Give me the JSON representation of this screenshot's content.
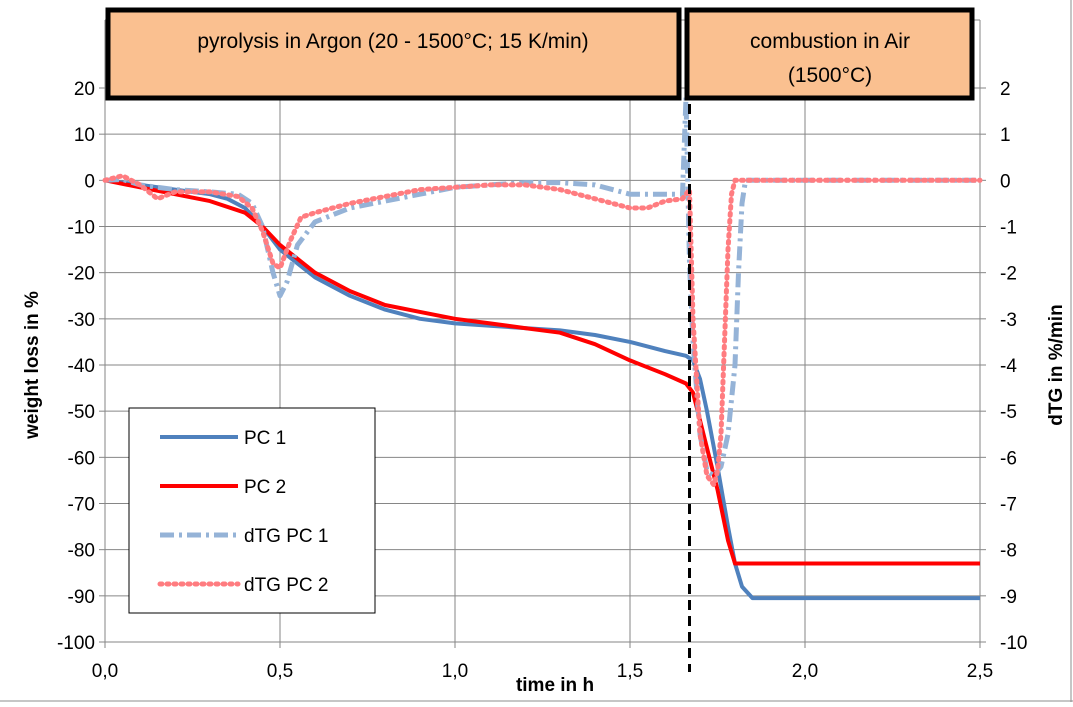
{
  "chart_data": {
    "type": "line",
    "title": "",
    "xlabel": "time in h",
    "ylabel": "weight loss in %",
    "y2label": "dTG in %/min",
    "xlim": [
      0,
      2.5
    ],
    "ylim": [
      -100,
      30
    ],
    "y2lim": [
      -10,
      3
    ],
    "x_ticks": [
      "0,0",
      "0,5",
      "1,0",
      "1,5",
      "2,0",
      "2,5"
    ],
    "y_ticks": [
      "20",
      "10",
      "0",
      "-10",
      "-20",
      "-30",
      "-40",
      "-50",
      "-60",
      "-70",
      "-80",
      "-90",
      "-100"
    ],
    "y2_ticks": [
      "2",
      "1",
      "0",
      "-1",
      "-2",
      "-3",
      "-4",
      "-5",
      "-6",
      "-7",
      "-8",
      "-9",
      "-10"
    ],
    "grid": true,
    "legend_position": "bottom-left",
    "phases": [
      {
        "label": "pyrolysis in Argon (20 - 1500°C; 15 K/min)",
        "x_range": [
          0,
          1.67
        ]
      },
      {
        "label": "combustion in Air (1500°C)",
        "x_range": [
          1.67,
          2.5
        ]
      }
    ],
    "phase_boundary_x": 1.67,
    "series": [
      {
        "name": "PC 1",
        "axis": "left",
        "color": "#4f81bd",
        "style": "solid",
        "x": [
          0,
          0.1,
          0.2,
          0.3,
          0.35,
          0.4,
          0.45,
          0.5,
          0.55,
          0.6,
          0.7,
          0.8,
          0.9,
          1.0,
          1.1,
          1.2,
          1.3,
          1.4,
          1.5,
          1.6,
          1.66,
          1.68,
          1.7,
          1.72,
          1.75,
          1.78,
          1.8,
          1.82,
          1.85,
          2.0,
          2.2,
          2.5
        ],
        "y": [
          0,
          -1,
          -2,
          -3,
          -4,
          -6,
          -10,
          -15,
          -18,
          -21,
          -25,
          -28,
          -30,
          -31,
          -31.5,
          -32,
          -32.5,
          -33.5,
          -35,
          -37,
          -38,
          -39,
          -43,
          -50,
          -62,
          -75,
          -83,
          -88,
          -90.5,
          -90.5,
          -90.5,
          -90.5
        ]
      },
      {
        "name": "PC 2",
        "axis": "left",
        "color": "#ff0000",
        "style": "solid",
        "x": [
          0,
          0.1,
          0.2,
          0.3,
          0.4,
          0.45,
          0.5,
          0.55,
          0.6,
          0.7,
          0.8,
          0.9,
          1.0,
          1.1,
          1.2,
          1.3,
          1.4,
          1.5,
          1.6,
          1.66,
          1.68,
          1.7,
          1.72,
          1.75,
          1.78,
          1.8,
          2.0,
          2.5
        ],
        "y": [
          0,
          -1.5,
          -3,
          -4.5,
          -7,
          -10,
          -14,
          -17,
          -20,
          -24,
          -27,
          -28.5,
          -30,
          -31,
          -32,
          -33,
          -35.5,
          -39,
          -42,
          -44,
          -46,
          -52,
          -58,
          -67,
          -78,
          -83,
          -83,
          -83
        ]
      },
      {
        "name": "dTG PC 1",
        "axis": "right",
        "color": "#95b3d7",
        "style": "dashdot",
        "x": [
          0,
          0.05,
          0.1,
          0.15,
          0.2,
          0.3,
          0.38,
          0.42,
          0.45,
          0.48,
          0.5,
          0.52,
          0.55,
          0.6,
          0.7,
          0.8,
          0.9,
          1.0,
          1.1,
          1.2,
          1.3,
          1.4,
          1.5,
          1.55,
          1.6,
          1.65,
          1.66,
          1.67,
          1.68,
          1.7,
          1.72,
          1.74,
          1.76,
          1.78,
          1.8,
          1.81,
          1.82,
          1.83,
          1.85,
          2.0,
          2.2,
          2.38,
          2.4,
          2.5
        ],
        "y": [
          0,
          0.02,
          -0.1,
          -0.15,
          -0.2,
          -0.25,
          -0.3,
          -0.5,
          -1.0,
          -2.0,
          -2.5,
          -2.2,
          -1.4,
          -0.9,
          -0.6,
          -0.45,
          -0.3,
          -0.15,
          -0.1,
          -0.05,
          -0.05,
          -0.1,
          -0.3,
          -0.3,
          -0.3,
          -0.3,
          1.8,
          -1.8,
          -3.5,
          -5.5,
          -6.3,
          -6.4,
          -6.2,
          -5.5,
          -4.0,
          -2.0,
          -0.5,
          0,
          0,
          0,
          0,
          0,
          0,
          0
        ]
      },
      {
        "name": "dTG PC 2",
        "axis": "right",
        "color": "#ff7c80",
        "style": "dotted",
        "x": [
          0,
          0.05,
          0.1,
          0.15,
          0.2,
          0.3,
          0.38,
          0.42,
          0.45,
          0.48,
          0.5,
          0.53,
          0.56,
          0.6,
          0.7,
          0.8,
          0.9,
          1.0,
          1.1,
          1.2,
          1.3,
          1.4,
          1.5,
          1.55,
          1.6,
          1.65,
          1.67,
          1.68,
          1.7,
          1.72,
          1.74,
          1.75,
          1.76,
          1.77,
          1.78,
          1.79,
          1.8,
          2.0,
          2.2,
          2.5
        ],
        "y": [
          0,
          0.1,
          -0.1,
          -0.4,
          -0.25,
          -0.25,
          -0.35,
          -0.6,
          -1.1,
          -1.8,
          -1.9,
          -1.3,
          -0.8,
          -0.7,
          -0.5,
          -0.35,
          -0.2,
          -0.15,
          -0.1,
          -0.1,
          -0.2,
          -0.4,
          -0.6,
          -0.6,
          -0.45,
          -0.4,
          -0.2,
          -3.0,
          -5.5,
          -6.4,
          -6.6,
          -6.3,
          -5.5,
          -3.5,
          -1.5,
          -0.3,
          0,
          0,
          0,
          0
        ]
      }
    ]
  }
}
